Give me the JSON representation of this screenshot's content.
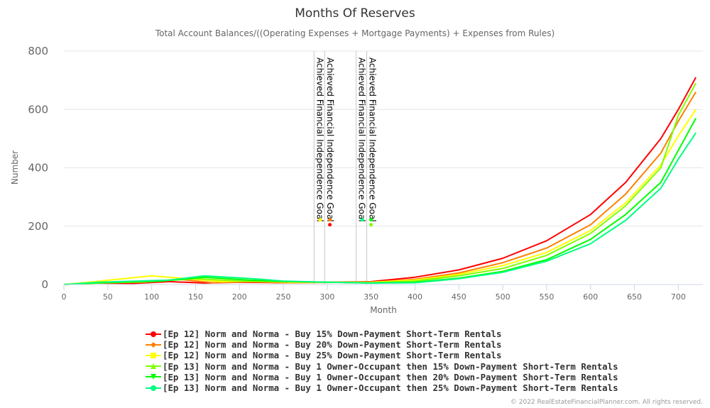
{
  "chart_data": {
    "type": "line",
    "title": "Months Of Reserves",
    "subtitle": "Total Account Balances/((Operating Expenses + Mortgage Payments) + Expenses from Rules)",
    "xlabel": "Month",
    "ylabel": "Number",
    "xlim": [
      0,
      728
    ],
    "ylim": [
      0,
      800
    ],
    "x_ticks": [
      0,
      50,
      100,
      150,
      200,
      250,
      300,
      350,
      400,
      450,
      500,
      550,
      600,
      650,
      700
    ],
    "y_ticks": [
      0,
      200,
      400,
      600,
      800
    ],
    "grid": true,
    "legend_position": "bottom",
    "plot_lines": [
      {
        "x": 285,
        "label": "Achieved Financial Independence Goal"
      },
      {
        "x": 297,
        "label": "Achieved Financial Independence Goal"
      },
      {
        "x": 333,
        "label": "Achieved Financial Independence Goal"
      },
      {
        "x": 345,
        "label": "Achieved Financial Independence Goal"
      }
    ],
    "goal_markers": [
      {
        "x": 292,
        "y": 222,
        "color": "#ffff00"
      },
      {
        "x": 303,
        "y": 222,
        "color": "#ff8000"
      },
      {
        "x": 303,
        "y": 205,
        "color": "#ff0000"
      },
      {
        "x": 340,
        "y": 222,
        "color": "#00ff80"
      },
      {
        "x": 350,
        "y": 222,
        "color": "#00ff00"
      },
      {
        "x": 350,
        "y": 205,
        "color": "#80ff00"
      }
    ],
    "series": [
      {
        "name": "[Ep 12] Norm and Norma - Buy 15% Down-Payment Short-Term Rentals",
        "color": "#ff0000",
        "marker": "circle",
        "x": [
          0,
          30,
          80,
          120,
          160,
          200,
          250,
          300,
          350,
          400,
          450,
          500,
          550,
          600,
          640,
          680,
          700,
          720
        ],
        "y": [
          0,
          5,
          4,
          10,
          5,
          8,
          6,
          8,
          10,
          25,
          50,
          90,
          150,
          240,
          350,
          500,
          600,
          710
        ]
      },
      {
        "name": "[Ep 12] Norm and Norma - Buy 20% Down-Payment Short-Term Rentals",
        "color": "#ff8000",
        "marker": "diamond",
        "x": [
          0,
          30,
          90,
          130,
          170,
          210,
          250,
          300,
          350,
          400,
          450,
          500,
          550,
          600,
          640,
          680,
          700,
          720
        ],
        "y": [
          0,
          6,
          8,
          18,
          6,
          10,
          6,
          7,
          8,
          18,
          40,
          75,
          125,
          205,
          310,
          450,
          560,
          660
        ]
      },
      {
        "name": "[Ep 12] Norm and Norma - Buy 25% Down-Payment Short-Term Rentals",
        "color": "#ffff00",
        "marker": "square",
        "x": [
          0,
          35,
          100,
          140,
          180,
          220,
          260,
          300,
          350,
          400,
          450,
          500,
          550,
          600,
          640,
          680,
          700,
          720
        ],
        "y": [
          0,
          10,
          30,
          20,
          10,
          12,
          8,
          8,
          8,
          15,
          35,
          65,
          110,
          185,
          280,
          410,
          510,
          600
        ]
      },
      {
        "name": "[Ep 13] Norm and Norma - Buy 1 Owner-Occupant then 15% Down-Payment Short-Term Rentals",
        "color": "#80ff00",
        "marker": "triangle",
        "x": [
          0,
          40,
          100,
          150,
          200,
          250,
          300,
          350,
          400,
          450,
          500,
          550,
          600,
          640,
          680,
          700,
          720
        ],
        "y": [
          0,
          5,
          10,
          20,
          12,
          10,
          8,
          6,
          12,
          30,
          55,
          100,
          175,
          270,
          400,
          580,
          690
        ]
      },
      {
        "name": "[Ep 13] Norm and Norma - Buy 1 Owner-Occupant then 20% Down-Payment Short-Term Rentals",
        "color": "#00ff00",
        "marker": "triangle-down",
        "x": [
          0,
          40,
          110,
          160,
          210,
          260,
          300,
          350,
          400,
          450,
          500,
          550,
          600,
          640,
          680,
          700,
          720
        ],
        "y": [
          0,
          6,
          12,
          25,
          15,
          10,
          8,
          5,
          8,
          22,
          45,
          85,
          155,
          240,
          350,
          460,
          570
        ]
      },
      {
        "name": "[Ep 13] Norm and Norma - Buy 1 Owner-Occupant then 25% Down-Payment Short-Term Rentals",
        "color": "#00ff80",
        "marker": "circle",
        "x": [
          0,
          40,
          120,
          160,
          215,
          250,
          300,
          350,
          400,
          450,
          500,
          550,
          600,
          640,
          680,
          700,
          720
        ],
        "y": [
          0,
          8,
          15,
          30,
          20,
          12,
          8,
          5,
          6,
          20,
          42,
          80,
          140,
          220,
          330,
          430,
          520
        ]
      }
    ]
  },
  "credits": "© 2022 RealEstateFinancialPlanner.com. All rights reserved."
}
